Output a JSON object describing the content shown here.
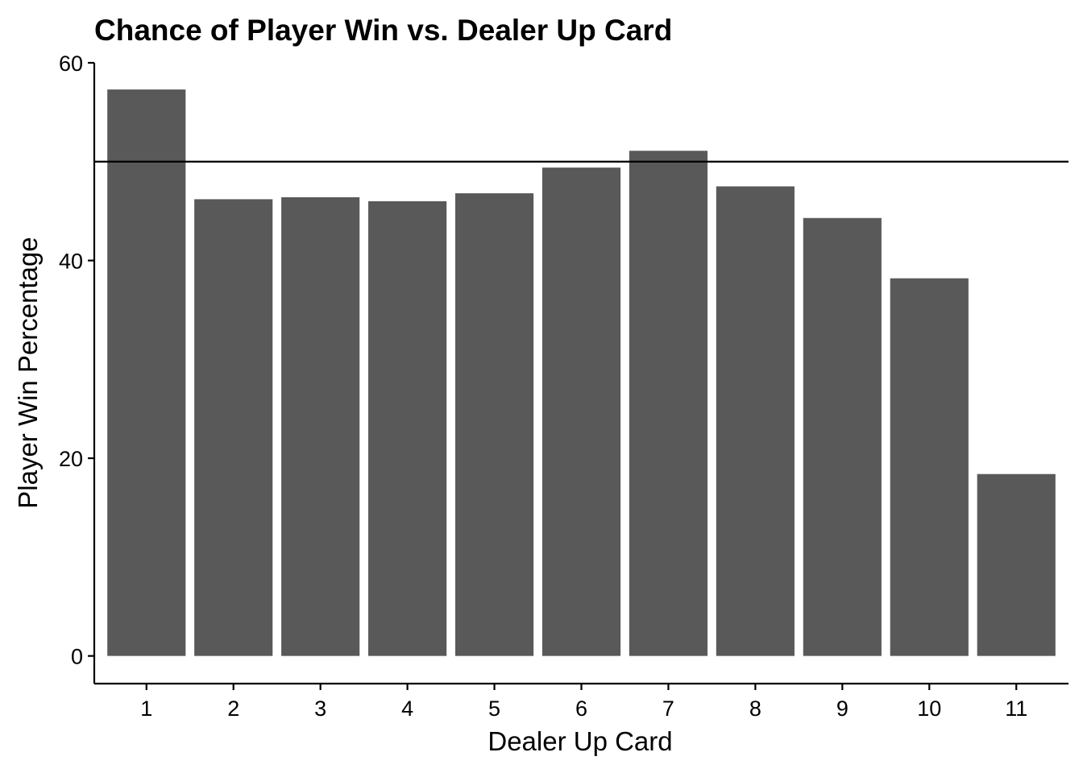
{
  "chart_data": {
    "type": "bar",
    "title": "Chance of Player Win vs. Dealer Up Card",
    "xlabel": "Dealer Up Card",
    "ylabel": "Player Win Percentage",
    "categories": [
      "1",
      "2",
      "3",
      "4",
      "5",
      "6",
      "7",
      "8",
      "9",
      "10",
      "11"
    ],
    "values": [
      57.3,
      46.2,
      46.4,
      46.0,
      46.8,
      49.4,
      51.1,
      47.5,
      44.3,
      38.2,
      18.4
    ],
    "y_ticks": [
      "0",
      "20",
      "40",
      "60"
    ],
    "ylim": [
      -2.8,
      60
    ],
    "reference_line": 50,
    "grid": false,
    "bar_color": "#595959",
    "line_color": "#000000"
  }
}
